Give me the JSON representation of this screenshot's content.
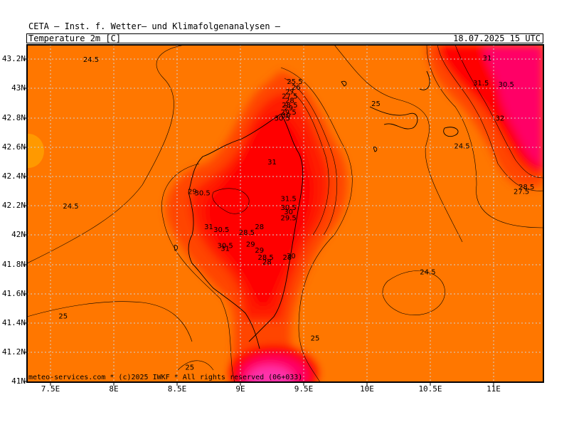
{
  "header": {
    "title": "CETA — Inst. f. Wetter— und Klimafolgenanalysen —",
    "variable": "Temperature_2m_[C]",
    "timestamp": "18.07.2025 15 UTC"
  },
  "credit": "meteo-services.com * (c)2025 IWKF * All rights reserved (06+033)",
  "axes": {
    "lon_labels": [
      "7.5E",
      "8E",
      "8.5E",
      "9E",
      "9.5E",
      "10E",
      "10.5E",
      "11E"
    ],
    "lat_labels": [
      "43.2N",
      "43N",
      "42.8N",
      "42.6N",
      "42.4N",
      "42.2N",
      "42N",
      "41.8N",
      "41.6N",
      "41.4N",
      "41.2N",
      "41N"
    ]
  },
  "colors": {
    "base": "#ff7700",
    "warm1": "#ff4400",
    "warm2": "#ff1a00",
    "hot": "#ff0000",
    "hotter": "#ff0066",
    "hottest": "#ff33aa",
    "cool": "#ff9900",
    "grid": "#d0d0d0"
  },
  "contour_labels": [
    {
      "text": "24.5",
      "lon": 7.82,
      "lat": 43.2
    },
    {
      "text": "24.5",
      "lon": 7.66,
      "lat": 42.2
    },
    {
      "text": "25",
      "lon": 7.6,
      "lat": 41.45
    },
    {
      "text": "25",
      "lon": 8.6,
      "lat": 41.1
    },
    {
      "text": "25",
      "lon": 9.59,
      "lat": 41.3
    },
    {
      "text": "25",
      "lon": 10.07,
      "lat": 42.9
    },
    {
      "text": "24.5",
      "lon": 10.75,
      "lat": 42.61
    },
    {
      "text": "24.5",
      "lon": 10.48,
      "lat": 41.75
    },
    {
      "text": "25.5",
      "lon": 9.43,
      "lat": 43.05
    },
    {
      "text": "26",
      "lon": 9.44,
      "lat": 43.01
    },
    {
      "text": "27",
      "lon": 9.39,
      "lat": 42.98
    },
    {
      "text": "27.5",
      "lon": 9.39,
      "lat": 42.95
    },
    {
      "text": "28",
      "lon": 9.39,
      "lat": 42.92
    },
    {
      "text": "28.5",
      "lon": 9.39,
      "lat": 42.89
    },
    {
      "text": "29",
      "lon": 9.38,
      "lat": 42.87
    },
    {
      "text": "29.5",
      "lon": 9.38,
      "lat": 42.84
    },
    {
      "text": "30",
      "lon": 9.36,
      "lat": 42.82
    },
    {
      "text": "30.5",
      "lon": 9.33,
      "lat": 42.8
    },
    {
      "text": "31",
      "lon": 9.25,
      "lat": 42.5
    },
    {
      "text": "31.5",
      "lon": 9.38,
      "lat": 42.25
    },
    {
      "text": "30.5",
      "lon": 9.38,
      "lat": 42.19
    },
    {
      "text": "30",
      "lon": 9.38,
      "lat": 42.16
    },
    {
      "text": "29.5",
      "lon": 9.38,
      "lat": 42.12
    },
    {
      "text": "28",
      "lon": 9.15,
      "lat": 42.06
    },
    {
      "text": "28.5",
      "lon": 9.05,
      "lat": 42.02
    },
    {
      "text": "29",
      "lon": 9.08,
      "lat": 41.94
    },
    {
      "text": "29",
      "lon": 9.15,
      "lat": 41.9
    },
    {
      "text": "28.5",
      "lon": 9.2,
      "lat": 41.85
    },
    {
      "text": "28",
      "lon": 9.21,
      "lat": 41.82
    },
    {
      "text": "28",
      "lon": 9.37,
      "lat": 41.85
    },
    {
      "text": "30",
      "lon": 9.4,
      "lat": 41.86
    },
    {
      "text": "29",
      "lon": 8.62,
      "lat": 42.3
    },
    {
      "text": "30.5",
      "lon": 8.7,
      "lat": 42.29
    },
    {
      "text": "31",
      "lon": 8.75,
      "lat": 42.06
    },
    {
      "text": "30.5",
      "lon": 8.85,
      "lat": 42.04
    },
    {
      "text": "30.5",
      "lon": 8.88,
      "lat": 41.93
    },
    {
      "text": "31",
      "lon": 8.88,
      "lat": 41.91
    },
    {
      "text": "31",
      "lon": 10.95,
      "lat": 43.21
    },
    {
      "text": "31.5",
      "lon": 10.9,
      "lat": 43.04
    },
    {
      "text": "30.5",
      "lon": 11.1,
      "lat": 43.03
    },
    {
      "text": "32",
      "lon": 11.05,
      "lat": 42.8
    },
    {
      "text": "28.5",
      "lon": 11.26,
      "lat": 42.33
    },
    {
      "text": "27.5",
      "lon": 11.22,
      "lat": 42.3
    }
  ]
}
